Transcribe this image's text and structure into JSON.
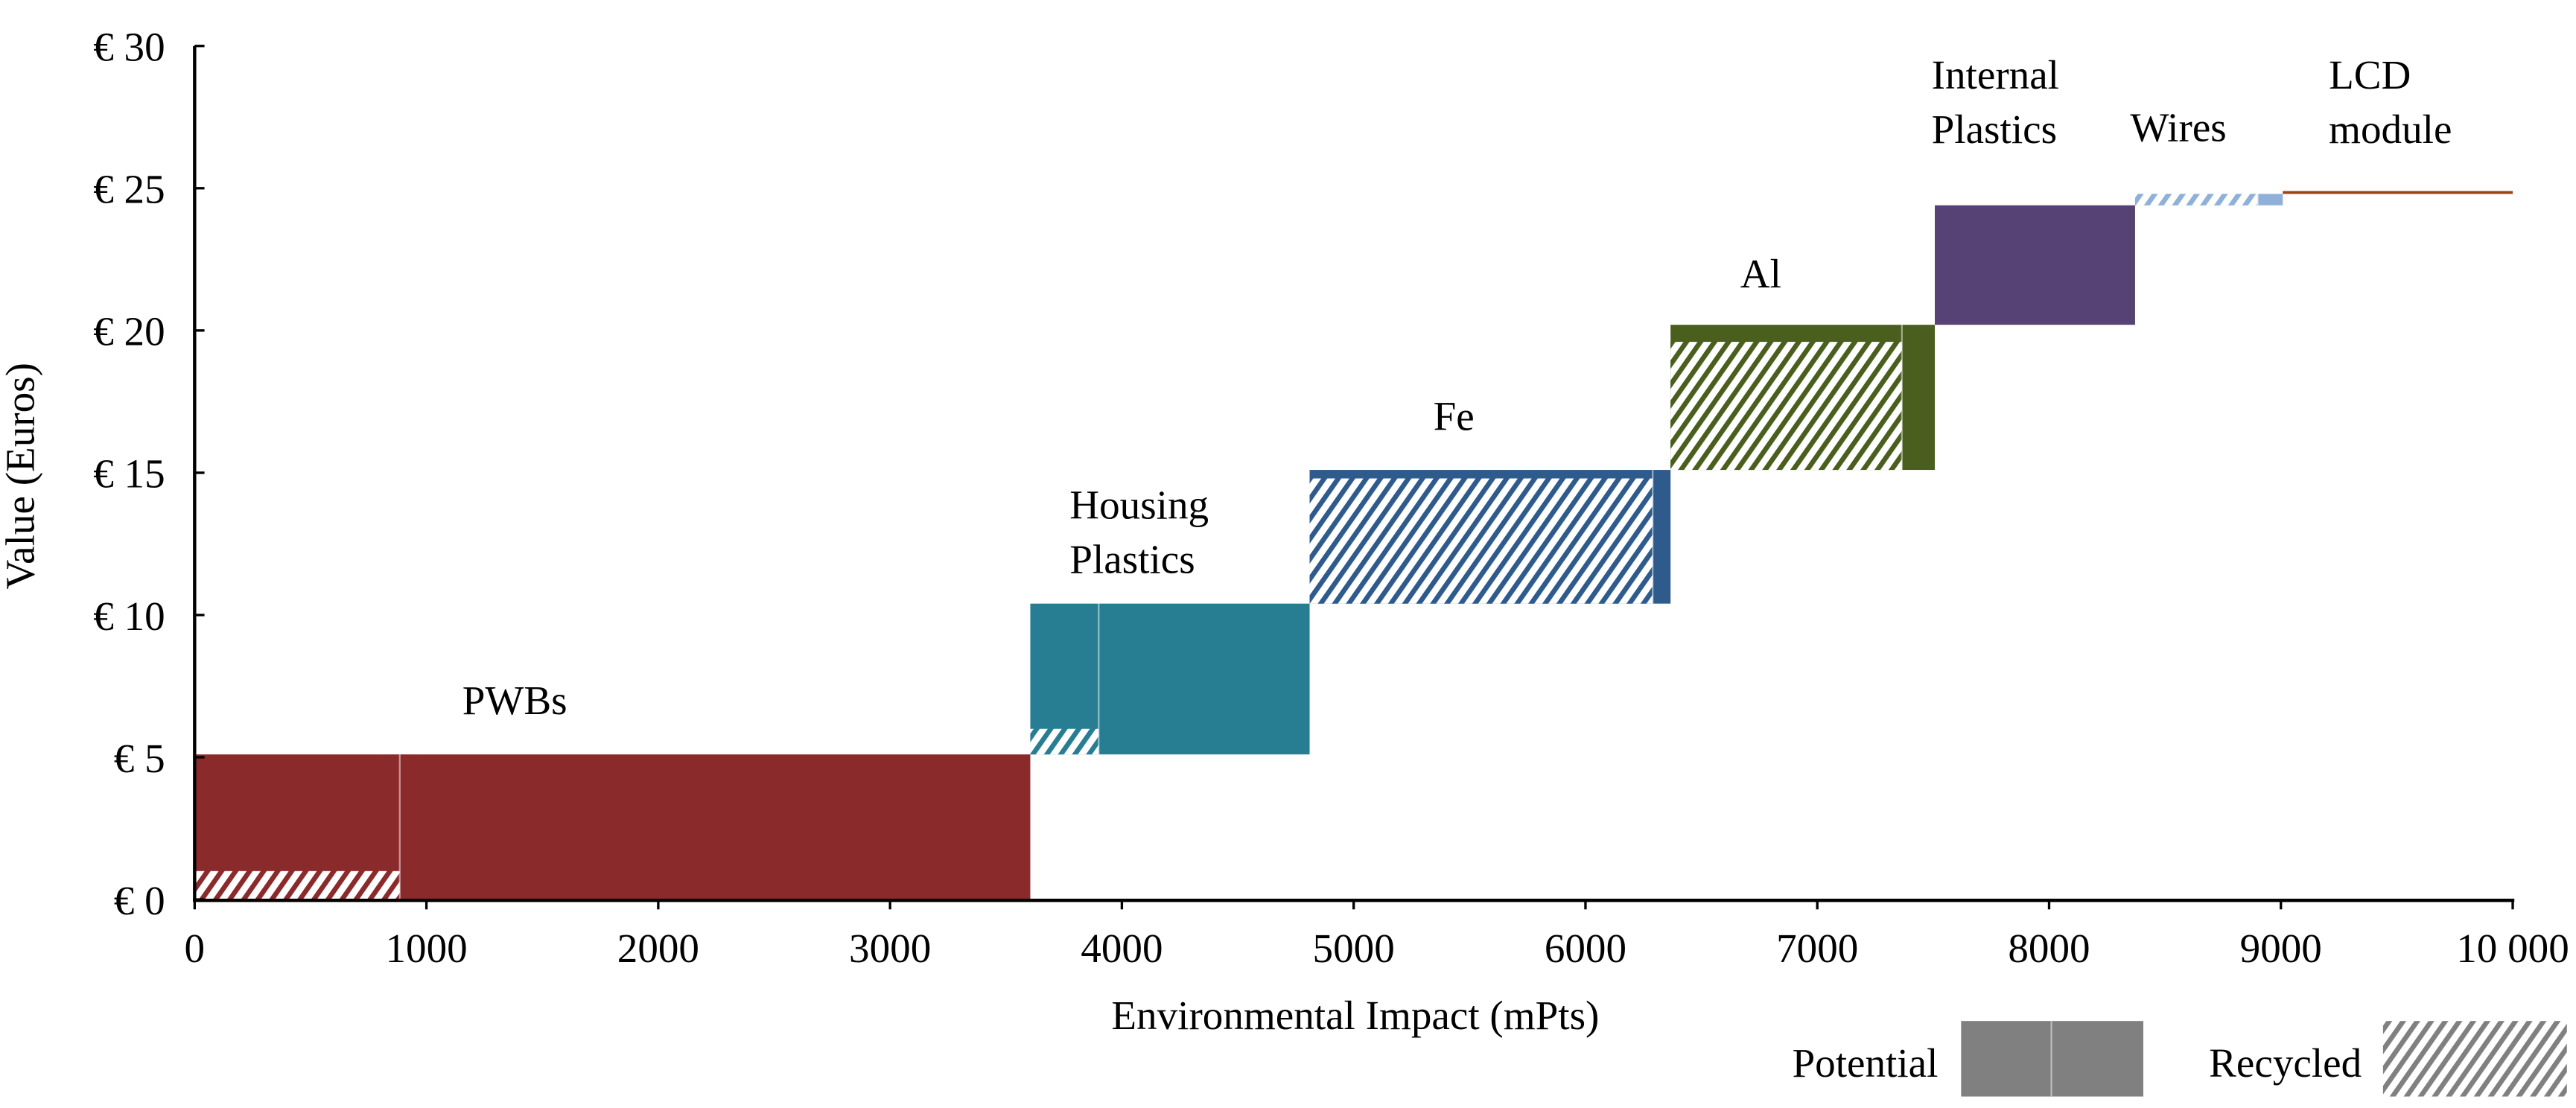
{
  "chart_data": {
    "type": "bar",
    "subtype": "cumulative step chart (variable-width)",
    "xlabel": "Environmental Impact (mPts)",
    "ylabel": "Value (Euros)",
    "xlim": [
      0,
      10000
    ],
    "ylim": [
      0,
      30
    ],
    "xticks": [
      0,
      1000,
      2000,
      3000,
      4000,
      5000,
      6000,
      7000,
      8000,
      9000,
      10000
    ],
    "xtick_labels": [
      "0",
      "1000",
      "2000",
      "3000",
      "4000",
      "5000",
      "6000",
      "7000",
      "8000",
      "9000",
      "10 000"
    ],
    "yticks": [
      0,
      5,
      10,
      15,
      20,
      25,
      30
    ],
    "ytick_labels": [
      "€ 0",
      "€ 5",
      "€ 10",
      "€ 15",
      "€ 20",
      "€ 25",
      "€ 30"
    ],
    "grid": false,
    "legend": {
      "placement": "bottom-right",
      "potential_label": "Potential",
      "recycled_label": "Recycled",
      "color": "#808080"
    },
    "series": [
      {
        "name": "PWBs",
        "label_lines": [
          "PWBs"
        ],
        "color": "#8B2A2B",
        "x_start": 0,
        "x_end": 3605,
        "y_start": 0,
        "y_end": 5.1,
        "recycled_x_end": 885,
        "recycled_y_end": 1.0
      },
      {
        "name": "Housing Plastics",
        "label_lines": [
          "Housing",
          "Plastics"
        ],
        "color": "#277E93",
        "x_start": 3605,
        "x_end": 4810,
        "y_start": 5.1,
        "y_end": 10.4,
        "recycled_x_end": 3900,
        "recycled_y_end": 6.0
      },
      {
        "name": "Fe",
        "label_lines": [
          "Fe"
        ],
        "color": "#2E5A8C",
        "x_start": 4810,
        "x_end": 6367,
        "y_start": 10.4,
        "y_end": 15.1,
        "recycled_x_end": 6290,
        "recycled_y_end": 14.8
      },
      {
        "name": "Al",
        "label_lines": [
          "Al"
        ],
        "color": "#4A5E1E",
        "x_start": 6367,
        "x_end": 7507,
        "y_start": 15.1,
        "y_end": 20.2,
        "recycled_x_end": 7365,
        "recycled_y_end": 19.6
      },
      {
        "name": "Internal Plastics",
        "label_lines": [
          "Internal",
          "Plastics"
        ],
        "color": "#574275",
        "x_start": 7507,
        "x_end": 8371,
        "y_start": 20.2,
        "y_end": 24.4,
        "recycled_x_end": null,
        "recycled_y_end": null
      },
      {
        "name": "Wires",
        "label_lines": [
          "Wires"
        ],
        "color": "#8FB0D8",
        "x_start": 8371,
        "x_end": 9008,
        "y_start": 24.4,
        "y_end": 24.8,
        "recycled_x_end": 8900,
        "recycled_y_end": 24.8
      },
      {
        "name": "LCD module",
        "label_lines": [
          "LCD",
          "module"
        ],
        "color": "#A0410E",
        "x_start": 9008,
        "x_end": 10000,
        "y_start": 24.8,
        "y_end": 24.9,
        "recycled_x_end": null,
        "recycled_y_end": null
      }
    ]
  }
}
